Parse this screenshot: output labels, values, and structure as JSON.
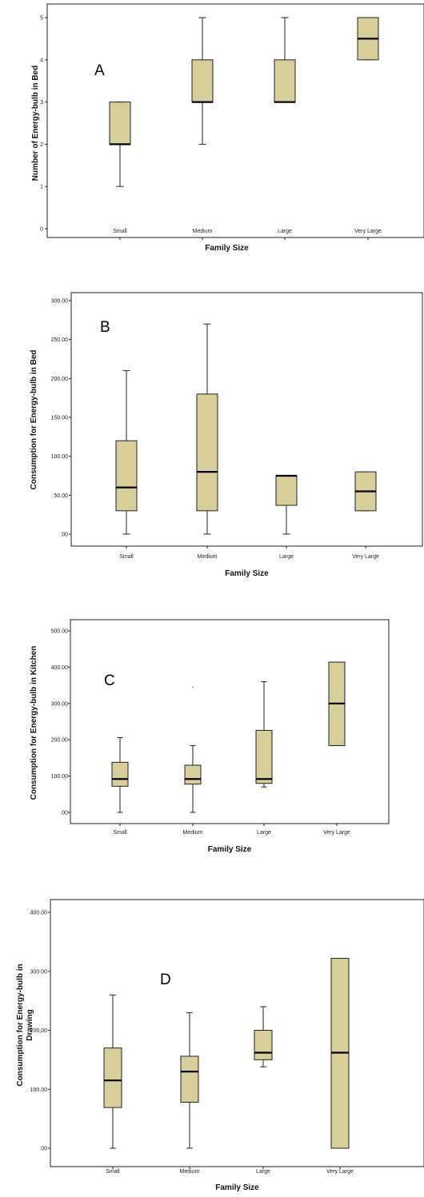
{
  "chart_data": [
    {
      "type": "box",
      "panel_label": "A",
      "xlabel": "Family Size",
      "ylabel": "Number of Energy-bulb in Bed",
      "ylim": [
        0,
        5
      ],
      "yticks": [
        "0",
        "1",
        "2",
        "3",
        "4",
        "5"
      ],
      "categories": [
        "Small",
        "Medium",
        "Large",
        "Very Large"
      ],
      "boxes": [
        {
          "min": 1,
          "q1": 2,
          "median": 2,
          "q3": 3,
          "max": 3
        },
        {
          "min": 2,
          "q1": 3,
          "median": 3,
          "q3": 4,
          "max": 5
        },
        {
          "min": 3,
          "q1": 3,
          "median": 3,
          "q3": 4,
          "max": 5
        },
        {
          "min": 4,
          "q1": 4,
          "median": 4.5,
          "q3": 5,
          "max": 5
        }
      ],
      "outliers": [],
      "box_color": "#d6cf9c"
    },
    {
      "type": "box",
      "panel_label": "B",
      "xlabel": "Family Size",
      "ylabel": "Consumption for Energy-bulb in Bed",
      "ylim": [
        0,
        300
      ],
      "yticks": [
        ".00",
        "50.00",
        "100.00",
        "150.00",
        "200.00",
        "250.00",
        "300.00"
      ],
      "categories": [
        "Small",
        "Medium",
        "Large",
        "Very Large"
      ],
      "boxes": [
        {
          "min": 0,
          "q1": 30,
          "median": 60,
          "q3": 120,
          "max": 210
        },
        {
          "min": 0,
          "q1": 30,
          "median": 80,
          "q3": 180,
          "max": 270
        },
        {
          "min": 0,
          "q1": 37,
          "median": 75,
          "q3": 75,
          "max": 75
        },
        {
          "min": 30,
          "q1": 30,
          "median": 55,
          "q3": 80,
          "max": 80
        }
      ],
      "outliers": [],
      "box_color": "#d6cf9c"
    },
    {
      "type": "box",
      "panel_label": "C",
      "xlabel": "Family Size",
      "ylabel": "Consumption for Energy-bulb in Kitchen",
      "ylim": [
        0,
        500
      ],
      "yticks": [
        ".00",
        "100.00",
        "200.00",
        "300.00",
        "400.00",
        "500.00"
      ],
      "categories": [
        "Small",
        "Medium",
        "Large",
        "Very Large"
      ],
      "boxes": [
        {
          "min": 0,
          "q1": 72,
          "median": 92,
          "q3": 138,
          "max": 206
        },
        {
          "min": 0,
          "q1": 78,
          "median": 92,
          "q3": 130,
          "max": 184
        },
        {
          "min": 70,
          "q1": 80,
          "median": 92,
          "q3": 226,
          "max": 360
        },
        {
          "min": 184,
          "q1": 184,
          "median": 300,
          "q3": 414,
          "max": 414
        }
      ],
      "outliers": [
        {
          "category": "Medium",
          "value": 345
        }
      ],
      "box_color": "#d6cf9c"
    },
    {
      "type": "box",
      "panel_label": "D",
      "xlabel": "Family Size",
      "ylabel": "Consumption for Energy-bulb in Drawing",
      "ylim": [
        0,
        400
      ],
      "yticks": [
        ".00",
        "100.00",
        "200.00",
        "300.00",
        "400.00"
      ],
      "categories": [
        "Small",
        "Medium",
        "Large",
        "Very Large"
      ],
      "boxes": [
        {
          "min": 0,
          "q1": 69,
          "median": 115,
          "q3": 170,
          "max": 260
        },
        {
          "min": 0,
          "q1": 78,
          "median": 130,
          "q3": 156,
          "max": 230
        },
        {
          "min": 138,
          "q1": 150,
          "median": 162,
          "q3": 200,
          "max": 240
        },
        {
          "min": 0,
          "q1": 0,
          "median": 162,
          "q3": 322,
          "max": 322
        }
      ],
      "outliers": [],
      "box_color": "#d6cf9c"
    }
  ]
}
